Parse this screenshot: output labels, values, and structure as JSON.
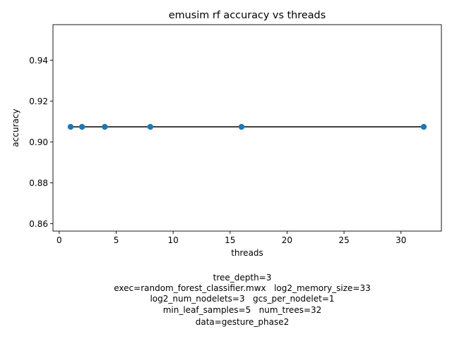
{
  "chart_data": {
    "type": "scatter",
    "title": "emusim rf accuracy vs threads",
    "xlabel": "threads",
    "ylabel": "accuracy",
    "xlim": [
      -0.55,
      33.55
    ],
    "ylim": [
      0.8564,
      0.9574
    ],
    "xticks": [
      0,
      5,
      10,
      15,
      20,
      25,
      30
    ],
    "xtick_labels": [
      "0",
      "5",
      "10",
      "15",
      "20",
      "25",
      "30"
    ],
    "yticks": [
      0.86,
      0.88,
      0.9,
      0.92,
      0.94
    ],
    "ytick_labels": [
      "0.86",
      "0.88",
      "0.90",
      "0.92",
      "0.94"
    ],
    "grid": false,
    "legend": "none",
    "series": [
      {
        "points": [
          {
            "x": 1,
            "y": 0.9074
          },
          {
            "x": 2,
            "y": 0.9074
          },
          {
            "x": 4,
            "y": 0.9074
          },
          {
            "x": 8,
            "y": 0.9074
          },
          {
            "x": 16,
            "y": 0.9074
          },
          {
            "x": 32,
            "y": 0.9074
          }
        ],
        "marker_color": "#1f77b4",
        "line_color": "#000000"
      }
    ],
    "annotation_lines": [
      "tree_depth=3",
      "exec=random_forest_classifier.mwx   log2_memory_size=33",
      "log2_num_nodelets=3   gcs_per_nodelet=1",
      "min_leaf_samples=5   num_trees=32",
      "data=gesture_phase2"
    ]
  }
}
